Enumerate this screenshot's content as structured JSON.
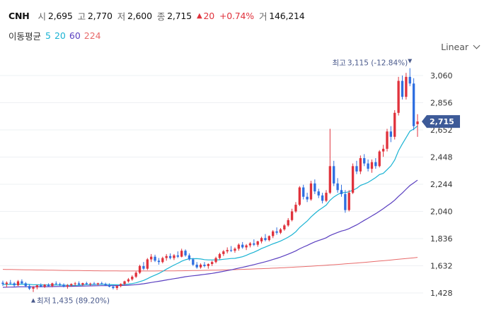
{
  "header": {
    "symbol": "CNH",
    "open_label": "시",
    "open": "2,695",
    "high_label": "고",
    "high": "2,770",
    "low_label": "저",
    "low": "2,600",
    "close_label": "종",
    "close": "2,715",
    "change": "20",
    "change_pct": "+0.74%",
    "volume_label": "거",
    "volume": "146,214"
  },
  "moving_average": {
    "title": "이동평균",
    "periods": [
      {
        "label": "5",
        "color": "#1ab3d3"
      },
      {
        "label": "20",
        "color": "#1ab3d3"
      },
      {
        "label": "60",
        "color": "#5a3fc0"
      },
      {
        "label": "224",
        "color": "#e86a6a"
      }
    ]
  },
  "scale": {
    "label": "Linear",
    "icon": "chevron-down-icon"
  },
  "colors": {
    "up": "#e0323c",
    "down": "#2f6fe0",
    "ma20": "#1ab3d3",
    "ma60": "#5a3fc0",
    "ma224": "#e86a6a",
    "price_tag": "#3d5a98",
    "annotation": "#4a5a8c"
  },
  "chart_data": {
    "type": "candlestick",
    "y_ticks": [
      "3,060",
      "2,856",
      "2,652",
      "2,448",
      "2,244",
      "2,040",
      "1,836",
      "1,632",
      "1,428"
    ],
    "ylim": [
      1380,
      3130
    ],
    "last_price_label": "2,715",
    "high_annotation": {
      "label": "최고",
      "value": "3,115 (-12.84%)"
    },
    "low_annotation": {
      "label": "최저",
      "value": "1,435 (89.20%)"
    },
    "candles": [
      {
        "o": 1505,
        "h": 1520,
        "l": 1480,
        "c": 1495
      },
      {
        "o": 1495,
        "h": 1515,
        "l": 1470,
        "c": 1505
      },
      {
        "o": 1505,
        "h": 1525,
        "l": 1490,
        "c": 1500
      },
      {
        "o": 1500,
        "h": 1510,
        "l": 1475,
        "c": 1485
      },
      {
        "o": 1485,
        "h": 1525,
        "l": 1480,
        "c": 1515
      },
      {
        "o": 1515,
        "h": 1530,
        "l": 1495,
        "c": 1500
      },
      {
        "o": 1500,
        "h": 1510,
        "l": 1470,
        "c": 1480
      },
      {
        "o": 1480,
        "h": 1495,
        "l": 1450,
        "c": 1460
      },
      {
        "o": 1460,
        "h": 1480,
        "l": 1435,
        "c": 1470
      },
      {
        "o": 1470,
        "h": 1490,
        "l": 1455,
        "c": 1485
      },
      {
        "o": 1485,
        "h": 1500,
        "l": 1470,
        "c": 1475
      },
      {
        "o": 1475,
        "h": 1495,
        "l": 1465,
        "c": 1490
      },
      {
        "o": 1490,
        "h": 1500,
        "l": 1475,
        "c": 1480
      },
      {
        "o": 1480,
        "h": 1505,
        "l": 1470,
        "c": 1500
      },
      {
        "o": 1500,
        "h": 1515,
        "l": 1490,
        "c": 1495
      },
      {
        "o": 1495,
        "h": 1505,
        "l": 1480,
        "c": 1490
      },
      {
        "o": 1490,
        "h": 1500,
        "l": 1470,
        "c": 1475
      },
      {
        "o": 1475,
        "h": 1495,
        "l": 1460,
        "c": 1485
      },
      {
        "o": 1485,
        "h": 1500,
        "l": 1475,
        "c": 1495
      },
      {
        "o": 1495,
        "h": 1510,
        "l": 1480,
        "c": 1500
      },
      {
        "o": 1500,
        "h": 1515,
        "l": 1485,
        "c": 1490
      },
      {
        "o": 1490,
        "h": 1505,
        "l": 1480,
        "c": 1502
      },
      {
        "o": 1502,
        "h": 1512,
        "l": 1488,
        "c": 1495
      },
      {
        "o": 1495,
        "h": 1505,
        "l": 1482,
        "c": 1498
      },
      {
        "o": 1498,
        "h": 1510,
        "l": 1490,
        "c": 1492
      },
      {
        "o": 1492,
        "h": 1505,
        "l": 1485,
        "c": 1500
      },
      {
        "o": 1500,
        "h": 1512,
        "l": 1490,
        "c": 1495
      },
      {
        "o": 1495,
        "h": 1505,
        "l": 1480,
        "c": 1485
      },
      {
        "o": 1485,
        "h": 1500,
        "l": 1470,
        "c": 1475
      },
      {
        "o": 1475,
        "h": 1490,
        "l": 1455,
        "c": 1465
      },
      {
        "o": 1465,
        "h": 1485,
        "l": 1450,
        "c": 1480
      },
      {
        "o": 1480,
        "h": 1500,
        "l": 1470,
        "c": 1495
      },
      {
        "o": 1495,
        "h": 1520,
        "l": 1485,
        "c": 1515
      },
      {
        "o": 1515,
        "h": 1540,
        "l": 1505,
        "c": 1530
      },
      {
        "o": 1530,
        "h": 1560,
        "l": 1520,
        "c": 1550
      },
      {
        "o": 1550,
        "h": 1590,
        "l": 1540,
        "c": 1580
      },
      {
        "o": 1580,
        "h": 1640,
        "l": 1570,
        "c": 1630
      },
      {
        "o": 1630,
        "h": 1660,
        "l": 1600,
        "c": 1610
      },
      {
        "o": 1610,
        "h": 1690,
        "l": 1600,
        "c": 1680
      },
      {
        "o": 1680,
        "h": 1720,
        "l": 1660,
        "c": 1700
      },
      {
        "o": 1700,
        "h": 1715,
        "l": 1660,
        "c": 1670
      },
      {
        "o": 1670,
        "h": 1690,
        "l": 1640,
        "c": 1660
      },
      {
        "o": 1660,
        "h": 1700,
        "l": 1650,
        "c": 1690
      },
      {
        "o": 1690,
        "h": 1720,
        "l": 1670,
        "c": 1705
      },
      {
        "o": 1705,
        "h": 1725,
        "l": 1680,
        "c": 1690
      },
      {
        "o": 1690,
        "h": 1720,
        "l": 1675,
        "c": 1710
      },
      {
        "o": 1710,
        "h": 1740,
        "l": 1690,
        "c": 1700
      },
      {
        "o": 1700,
        "h": 1760,
        "l": 1695,
        "c": 1745
      },
      {
        "o": 1745,
        "h": 1755,
        "l": 1700,
        "c": 1710
      },
      {
        "o": 1710,
        "h": 1725,
        "l": 1670,
        "c": 1680
      },
      {
        "o": 1680,
        "h": 1690,
        "l": 1630,
        "c": 1640
      },
      {
        "o": 1640,
        "h": 1660,
        "l": 1610,
        "c": 1620
      },
      {
        "o": 1620,
        "h": 1650,
        "l": 1610,
        "c": 1640
      },
      {
        "o": 1640,
        "h": 1660,
        "l": 1620,
        "c": 1630
      },
      {
        "o": 1630,
        "h": 1650,
        "l": 1610,
        "c": 1645
      },
      {
        "o": 1645,
        "h": 1670,
        "l": 1630,
        "c": 1660
      },
      {
        "o": 1660,
        "h": 1700,
        "l": 1650,
        "c": 1690
      },
      {
        "o": 1690,
        "h": 1730,
        "l": 1680,
        "c": 1720
      },
      {
        "o": 1720,
        "h": 1750,
        "l": 1705,
        "c": 1740
      },
      {
        "o": 1740,
        "h": 1770,
        "l": 1725,
        "c": 1750
      },
      {
        "o": 1750,
        "h": 1780,
        "l": 1735,
        "c": 1745
      },
      {
        "o": 1745,
        "h": 1770,
        "l": 1730,
        "c": 1760
      },
      {
        "o": 1760,
        "h": 1800,
        "l": 1745,
        "c": 1790
      },
      {
        "o": 1790,
        "h": 1810,
        "l": 1760,
        "c": 1770
      },
      {
        "o": 1770,
        "h": 1795,
        "l": 1750,
        "c": 1785
      },
      {
        "o": 1785,
        "h": 1810,
        "l": 1770,
        "c": 1800
      },
      {
        "o": 1800,
        "h": 1830,
        "l": 1780,
        "c": 1790
      },
      {
        "o": 1790,
        "h": 1820,
        "l": 1775,
        "c": 1815
      },
      {
        "o": 1815,
        "h": 1850,
        "l": 1800,
        "c": 1840
      },
      {
        "o": 1840,
        "h": 1870,
        "l": 1815,
        "c": 1825
      },
      {
        "o": 1825,
        "h": 1860,
        "l": 1815,
        "c": 1855
      },
      {
        "o": 1855,
        "h": 1900,
        "l": 1840,
        "c": 1890
      },
      {
        "o": 1890,
        "h": 1920,
        "l": 1865,
        "c": 1880
      },
      {
        "o": 1880,
        "h": 1915,
        "l": 1870,
        "c": 1905
      },
      {
        "o": 1905,
        "h": 1945,
        "l": 1895,
        "c": 1935
      },
      {
        "o": 1935,
        "h": 1990,
        "l": 1925,
        "c": 1975
      },
      {
        "o": 1975,
        "h": 2060,
        "l": 1965,
        "c": 2040
      },
      {
        "o": 2040,
        "h": 2110,
        "l": 2030,
        "c": 2090
      },
      {
        "o": 2090,
        "h": 2230,
        "l": 2080,
        "c": 2220
      },
      {
        "o": 2220,
        "h": 2240,
        "l": 2130,
        "c": 2150
      },
      {
        "o": 2150,
        "h": 2180,
        "l": 2110,
        "c": 2130
      },
      {
        "o": 2130,
        "h": 2270,
        "l": 2120,
        "c": 2250
      },
      {
        "o": 2250,
        "h": 2280,
        "l": 2170,
        "c": 2190
      },
      {
        "o": 2190,
        "h": 2210,
        "l": 2140,
        "c": 2160
      },
      {
        "o": 2160,
        "h": 2180,
        "l": 2100,
        "c": 2120
      },
      {
        "o": 2120,
        "h": 2200,
        "l": 2110,
        "c": 2180
      },
      {
        "o": 2180,
        "h": 2660,
        "l": 2170,
        "c": 2380
      },
      {
        "o": 2380,
        "h": 2420,
        "l": 2230,
        "c": 2250
      },
      {
        "o": 2250,
        "h": 2290,
        "l": 2180,
        "c": 2200
      },
      {
        "o": 2200,
        "h": 2240,
        "l": 2150,
        "c": 2170
      },
      {
        "o": 2170,
        "h": 2200,
        "l": 2030,
        "c": 2050
      },
      {
        "o": 2050,
        "h": 2200,
        "l": 2040,
        "c": 2180
      },
      {
        "o": 2180,
        "h": 2400,
        "l": 2170,
        "c": 2380
      },
      {
        "o": 2380,
        "h": 2420,
        "l": 2320,
        "c": 2340
      },
      {
        "o": 2340,
        "h": 2460,
        "l": 2320,
        "c": 2440
      },
      {
        "o": 2440,
        "h": 2470,
        "l": 2380,
        "c": 2400
      },
      {
        "o": 2400,
        "h": 2430,
        "l": 2340,
        "c": 2360
      },
      {
        "o": 2360,
        "h": 2430,
        "l": 2330,
        "c": 2410
      },
      {
        "o": 2410,
        "h": 2440,
        "l": 2360,
        "c": 2380
      },
      {
        "o": 2380,
        "h": 2500,
        "l": 2370,
        "c": 2490
      },
      {
        "o": 2490,
        "h": 2540,
        "l": 2450,
        "c": 2510
      },
      {
        "o": 2510,
        "h": 2660,
        "l": 2490,
        "c": 2640
      },
      {
        "o": 2640,
        "h": 2680,
        "l": 2560,
        "c": 2600
      },
      {
        "o": 2600,
        "h": 2800,
        "l": 2580,
        "c": 2780
      },
      {
        "o": 2780,
        "h": 3050,
        "l": 2760,
        "c": 3020
      },
      {
        "o": 3020,
        "h": 3060,
        "l": 2880,
        "c": 2900
      },
      {
        "o": 2900,
        "h": 3080,
        "l": 2880,
        "c": 3050
      },
      {
        "o": 3050,
        "h": 3115,
        "l": 2980,
        "c": 3000
      },
      {
        "o": 3000,
        "h": 3040,
        "l": 2650,
        "c": 2680
      },
      {
        "o": 2695,
        "h": 2770,
        "l": 2600,
        "c": 2715
      }
    ]
  }
}
